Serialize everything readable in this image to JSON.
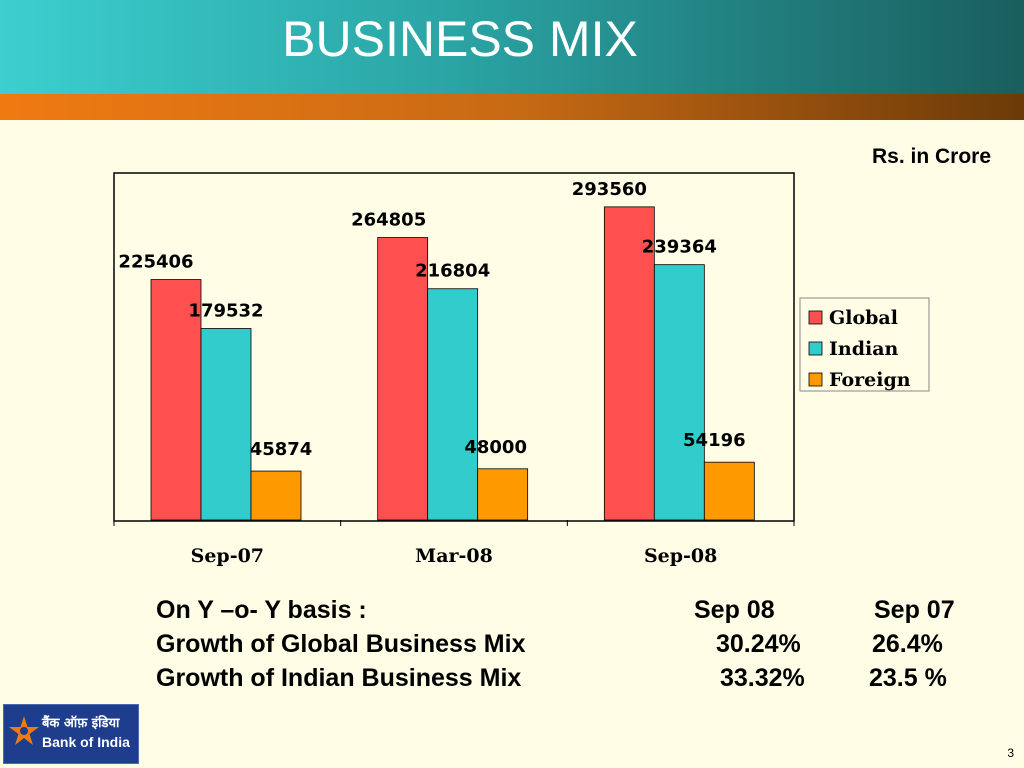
{
  "slide": {
    "title": "BUSINESS MIX",
    "unit_label": "Rs. in Crore",
    "page_number": "3"
  },
  "chart_data": {
    "type": "bar",
    "categories": [
      "Sep-07",
      "Mar-08",
      "Sep-08"
    ],
    "series": [
      {
        "name": "Global",
        "values": [
          225406,
          264805,
          293560
        ],
        "color": "#ff5050"
      },
      {
        "name": "Indian",
        "values": [
          179532,
          216804,
          239364
        ],
        "color": "#33cccc"
      },
      {
        "name": "Foreign",
        "values": [
          45874,
          48000,
          54196
        ],
        "color": "#ff9900"
      }
    ],
    "ylim": [
      0,
      330000
    ],
    "grid": false,
    "legend": "right",
    "title": "",
    "xlabel": "",
    "ylabel": ""
  },
  "growth": {
    "header": {
      "label": "On Y –o- Y basis :",
      "col1": "Sep 08",
      "col2": "Sep 07"
    },
    "rows": [
      {
        "label": "Growth of Global Business Mix",
        "col1": "30.24%",
        "col2": "26.4%"
      },
      {
        "label": "Growth of Indian Business Mix",
        "col1": "33.32%",
        "col2": "23.5 %"
      }
    ]
  },
  "logo": {
    "hindi": "बैंक ऑफ़ इंडिया",
    "english": "Bank of India",
    "icon": "star-logo-icon"
  }
}
